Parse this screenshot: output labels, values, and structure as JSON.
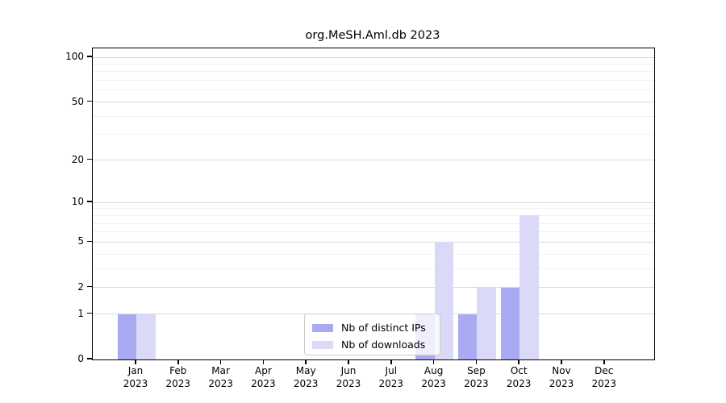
{
  "chart_data": {
    "type": "bar",
    "title": "org.MeSH.Aml.db 2023",
    "scale": "log1p",
    "ylim": [
      0,
      120
    ],
    "grid": "horizontal",
    "legend_position": "bottom-center-inside",
    "categories": [
      {
        "month": "Jan",
        "year": "2023"
      },
      {
        "month": "Feb",
        "year": "2023"
      },
      {
        "month": "Mar",
        "year": "2023"
      },
      {
        "month": "Apr",
        "year": "2023"
      },
      {
        "month": "May",
        "year": "2023"
      },
      {
        "month": "Jun",
        "year": "2023"
      },
      {
        "month": "Jul",
        "year": "2023"
      },
      {
        "month": "Aug",
        "year": "2023"
      },
      {
        "month": "Sep",
        "year": "2023"
      },
      {
        "month": "Oct",
        "year": "2023"
      },
      {
        "month": "Nov",
        "year": "2023"
      },
      {
        "month": "Dec",
        "year": "2023"
      }
    ],
    "series": [
      {
        "name": "Nb of distinct IPs",
        "color": "#aaaaf2",
        "values": [
          1,
          0,
          0,
          0,
          0,
          0,
          0,
          1,
          1,
          2,
          0,
          0
        ]
      },
      {
        "name": "Nb of downloads",
        "color": "#dadaf8",
        "values": [
          1,
          0,
          0,
          0,
          0,
          0,
          0,
          5,
          2,
          8,
          0,
          0
        ]
      }
    ],
    "yticks": [
      {
        "value": 0,
        "label": "0"
      },
      {
        "value": 1,
        "label": "1"
      },
      {
        "value": 2,
        "label": "2"
      },
      {
        "value": 5,
        "label": "5"
      },
      {
        "value": 10,
        "label": "10"
      },
      {
        "value": 20,
        "label": "20"
      },
      {
        "value": 50,
        "label": "50"
      },
      {
        "value": 100,
        "label": "100"
      }
    ],
    "minor_grid_values": [
      3,
      4,
      6,
      7,
      8,
      9,
      30,
      40,
      60,
      70,
      80,
      90
    ],
    "colors": {
      "major_grid": "#d9d9d9",
      "minor_grid": "#f0f0f0",
      "axis": "#000000"
    }
  }
}
